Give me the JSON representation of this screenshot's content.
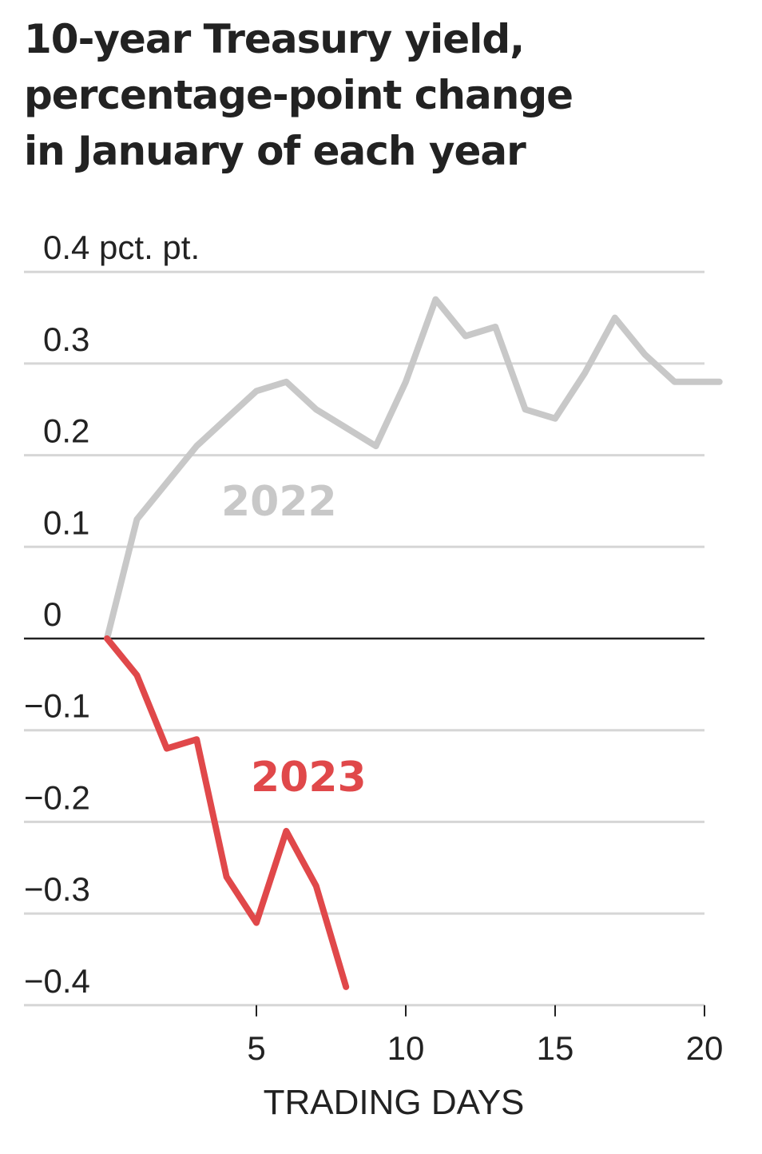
{
  "chart_data": {
    "type": "line",
    "title_lines": [
      "10-year Treasury yield,",
      "percentage-point change",
      "in January of each year"
    ],
    "xlabel": "TRADING DAYS",
    "ylabel": "",
    "xlim": [
      0,
      20.5
    ],
    "ylim": [
      -0.4,
      0.4
    ],
    "y_ticks": [
      0.4,
      0.3,
      0.2,
      0.1,
      0,
      -0.1,
      -0.2,
      -0.3,
      -0.4
    ],
    "y_tick_labels": [
      "0.4 pct. pt.",
      "0.3",
      "0.2",
      "0.1",
      "0",
      "−0.1",
      "−0.2",
      "−0.3",
      "−0.4"
    ],
    "x_ticks": [
      5,
      10,
      15,
      20
    ],
    "x_tick_labels": [
      "5",
      "10",
      "15",
      "20"
    ],
    "grid": true,
    "series": [
      {
        "name": "2022",
        "color": "#c8c8c8",
        "x": [
          0,
          1,
          2,
          3,
          4,
          5,
          6,
          7,
          8,
          9,
          10,
          11,
          12,
          13,
          14,
          15,
          16,
          17,
          18,
          19,
          20,
          20.5
        ],
        "y": [
          0,
          0.13,
          0.17,
          0.21,
          0.24,
          0.27,
          0.28,
          0.25,
          0.23,
          0.21,
          0.28,
          0.37,
          0.33,
          0.34,
          0.25,
          0.24,
          0.29,
          0.35,
          0.31,
          0.28,
          0.28,
          0.28
        ]
      },
      {
        "name": "2023",
        "color": "#e0484a",
        "x": [
          0,
          1,
          2,
          3,
          4,
          5,
          6,
          7,
          8
        ],
        "y": [
          0,
          -0.04,
          -0.12,
          -0.11,
          -0.26,
          -0.31,
          -0.21,
          -0.27,
          -0.38
        ]
      }
    ]
  }
}
